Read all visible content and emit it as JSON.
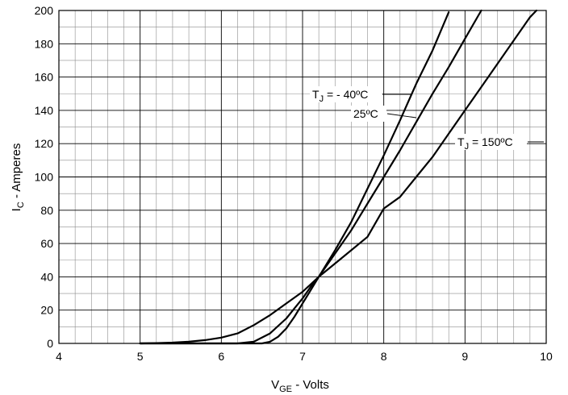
{
  "chart_data": {
    "type": "line",
    "xlabel": {
      "main": "V",
      "sub": "GE",
      "rest": " - Volts"
    },
    "ylabel": {
      "main": "I",
      "sub": "C",
      "rest": " - Amperes"
    },
    "xlim": [
      4,
      10
    ],
    "ylim": [
      0,
      200
    ],
    "x_ticks": [
      "4",
      "5",
      "6",
      "7",
      "8",
      "9",
      "10"
    ],
    "y_ticks": [
      "0",
      "20",
      "40",
      "60",
      "80",
      "100",
      "120",
      "140",
      "160",
      "180",
      "200"
    ],
    "grid": true,
    "series": [
      {
        "x": [
          5.0,
          5.5,
          6.3,
          6.5,
          6.6,
          6.7,
          6.8,
          6.9,
          7.0,
          7.1,
          7.2,
          7.4,
          7.6,
          7.8,
          8.0,
          8.2,
          8.4,
          8.6,
          8.8
        ],
        "y": [
          0,
          0,
          0,
          0,
          1,
          4,
          9,
          16,
          24,
          32,
          40,
          56,
          73,
          93,
          113,
          134,
          156,
          176,
          199
        ]
      },
      {
        "x": [
          5.0,
          5.5,
          6.0,
          6.2,
          6.4,
          6.6,
          6.8,
          6.9,
          7.0,
          7.1,
          7.2,
          7.4,
          7.6,
          7.8,
          8.0,
          8.2,
          8.4,
          8.6,
          8.8,
          9.0,
          9.2
        ],
        "y": [
          0,
          0,
          0,
          0,
          1,
          6,
          15,
          21,
          27,
          34,
          40,
          54,
          68,
          84,
          100,
          116,
          133,
          150,
          166,
          183,
          200
        ]
      },
      {
        "x": [
          5.0,
          5.2,
          5.4,
          5.6,
          5.8,
          6.0,
          6.2,
          6.4,
          6.6,
          6.8,
          7.0,
          7.2,
          7.4,
          7.6,
          7.8,
          8.0,
          8.2,
          8.4,
          8.6,
          8.8,
          9.0,
          9.2,
          9.4,
          9.6,
          9.8,
          9.88
        ],
        "y": [
          0,
          0.2,
          0.5,
          1,
          2,
          3.5,
          6,
          11,
          17,
          24,
          31,
          40,
          48,
          56,
          64,
          81,
          88,
          100,
          112,
          126,
          140,
          154,
          168,
          182,
          196,
          200
        ]
      }
    ],
    "annotations": [
      {
        "id": "tj-neg40",
        "main": "T",
        "sub": "J",
        "rest": "  = - 40ºC",
        "lx": 8.34,
        "ly": 150,
        "ax": 8.34,
        "ay": 150,
        "bx": 8.36,
        "by": 151
      },
      {
        "id": "t25",
        "main": "",
        "sub": "",
        "rest": "25ºC",
        "lx": 8.42,
        "ly": 139,
        "ax": 8.42,
        "ay": 139,
        "bx": 8.44,
        "by": 136
      },
      {
        "id": "tj-150",
        "main": "T",
        "sub": "J",
        "rest": "  = 150ºC",
        "lx": 8.9,
        "ly": 121,
        "ax": 8.9,
        "ay": 121,
        "bx": 9.0,
        "by": 121
      }
    ]
  }
}
